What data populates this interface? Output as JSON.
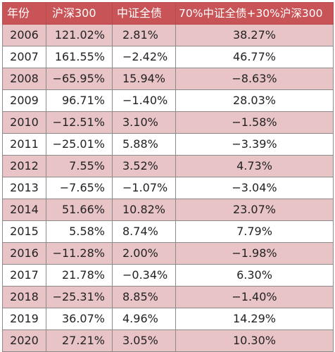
{
  "table": {
    "headers": {
      "year": "年份",
      "hs300": "沪深300",
      "zz": "中证全债",
      "mix": "70%中证全债+30%沪深300"
    },
    "rows": [
      {
        "year": "2006",
        "hs300": "121.02%",
        "zz": "2.81%",
        "mix": "38.27%"
      },
      {
        "year": "2007",
        "hs300": "161.55%",
        "zz": "−2.42%",
        "mix": "46.77%"
      },
      {
        "year": "2008",
        "hs300": "−65.95%",
        "zz": "15.94%",
        "mix": "−8.63%"
      },
      {
        "year": "2009",
        "hs300": "96.71%",
        "zz": "−1.40%",
        "mix": "28.03%"
      },
      {
        "year": "2010",
        "hs300": "−12.51%",
        "zz": "3.10%",
        "mix": "−1.58%"
      },
      {
        "year": "2011",
        "hs300": "−25.01%",
        "zz": "5.88%",
        "mix": "−3.39%"
      },
      {
        "year": "2012",
        "hs300": "7.55%",
        "zz": "3.52%",
        "mix": "4.73%"
      },
      {
        "year": "2013",
        "hs300": "−7.65%",
        "zz": "−1.07%",
        "mix": "−3.04%"
      },
      {
        "year": "2014",
        "hs300": "51.66%",
        "zz": "10.82%",
        "mix": "23.07%"
      },
      {
        "year": "2015",
        "hs300": "5.58%",
        "zz": "8.74%",
        "mix": "7.79%"
      },
      {
        "year": "2016",
        "hs300": "−11.28%",
        "zz": "2.00%",
        "mix": "−1.98%"
      },
      {
        "year": "2017",
        "hs300": "21.78%",
        "zz": "−0.34%",
        "mix": "6.30%"
      },
      {
        "year": "2018",
        "hs300": "−25.31%",
        "zz": "8.85%",
        "mix": "−1.40%"
      },
      {
        "year": "2019",
        "hs300": "36.07%",
        "zz": "4.96%",
        "mix": "14.29%"
      },
      {
        "year": "2020",
        "hs300": "27.21%",
        "zz": "3.05%",
        "mix": "10.30%"
      }
    ]
  },
  "colors": {
    "header_bg": "#c85457",
    "band_bg": "#e9c4c6",
    "plain_bg": "#ffffff"
  }
}
